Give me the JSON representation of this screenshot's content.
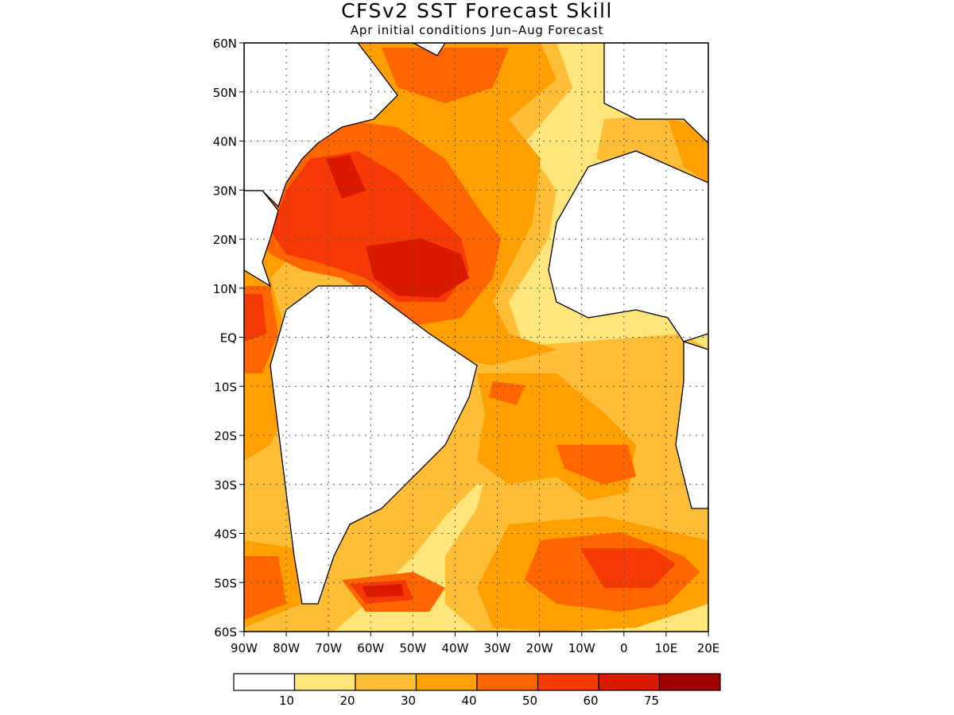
{
  "title": "CFSv2 SST Forecast Skill",
  "subtitle": "Apr initial conditions  Jun–Aug Forecast",
  "map": {
    "lon_range": [
      -90,
      20
    ],
    "lat_range": [
      -60,
      60
    ],
    "grid_lines": "dotted",
    "lat_labels": [
      {
        "value": 60,
        "label": "60N"
      },
      {
        "value": 50,
        "label": "50N"
      },
      {
        "value": 40,
        "label": "40N"
      },
      {
        "value": 30,
        "label": "30N"
      },
      {
        "value": 20,
        "label": "20N"
      },
      {
        "value": 10,
        "label": "10N"
      },
      {
        "value": 0,
        "label": "EQ"
      },
      {
        "value": -10,
        "label": "10S"
      },
      {
        "value": -20,
        "label": "20S"
      },
      {
        "value": -30,
        "label": "30S"
      },
      {
        "value": -40,
        "label": "40S"
      },
      {
        "value": -50,
        "label": "50S"
      },
      {
        "value": -60,
        "label": "60S"
      }
    ],
    "lon_labels": [
      {
        "value": -90,
        "label": "90W"
      },
      {
        "value": -80,
        "label": "80W"
      },
      {
        "value": -70,
        "label": "70W"
      },
      {
        "value": -60,
        "label": "60W"
      },
      {
        "value": -50,
        "label": "50W"
      },
      {
        "value": -40,
        "label": "40W"
      },
      {
        "value": -30,
        "label": "30W"
      },
      {
        "value": -20,
        "label": "20W"
      },
      {
        "value": -10,
        "label": "10W"
      },
      {
        "value": 0,
        "label": "0"
      },
      {
        "value": 10,
        "label": "10E"
      },
      {
        "value": 20,
        "label": "20E"
      }
    ]
  },
  "legend": {
    "bins": [
      {
        "color": "#ffffff"
      },
      {
        "color": "#ffe57a"
      },
      {
        "color": "#ffbe38"
      },
      {
        "color": "#ffa000"
      },
      {
        "color": "#ff6600"
      },
      {
        "color": "#f53a05"
      },
      {
        "color": "#d91a00"
      },
      {
        "color": "#a00000"
      }
    ],
    "labels": [
      "10",
      "20",
      "30",
      "40",
      "50",
      "60",
      "75"
    ]
  }
}
